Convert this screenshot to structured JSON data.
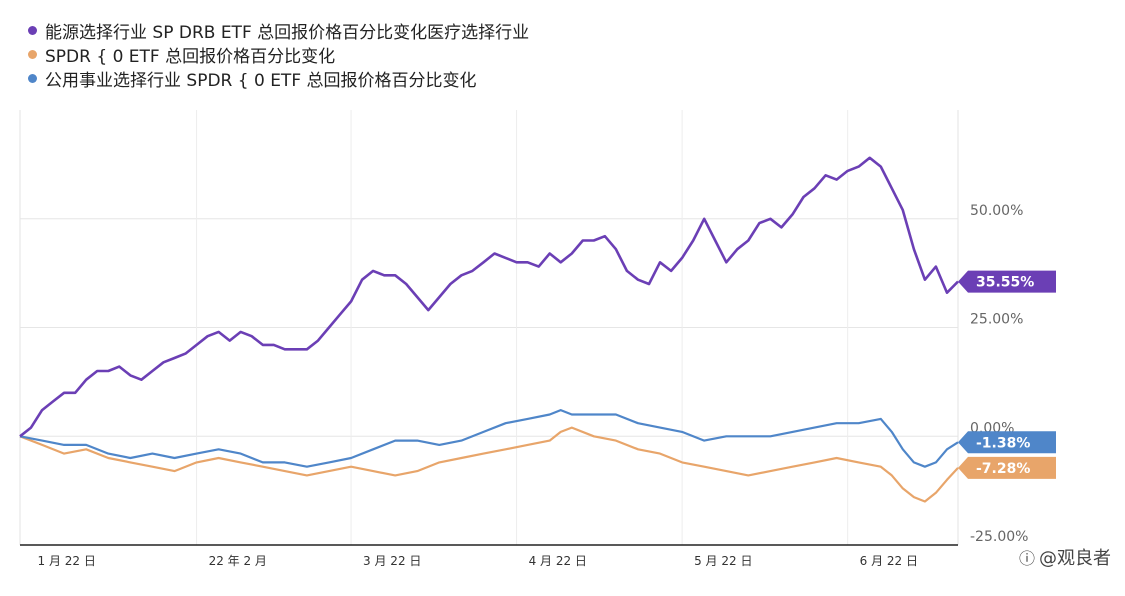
{
  "watermark": {
    "icon": "weibo-logo-icon",
    "text": "@观良者"
  },
  "chart_data": {
    "type": "line",
    "title": "",
    "xlabel": "",
    "ylabel": "",
    "ylim": [
      -25,
      75
    ],
    "y_ticks": [
      {
        "value": 50,
        "label": "50.00%"
      },
      {
        "value": 25,
        "label": "25.00%"
      },
      {
        "value": 0,
        "label": "0.00%"
      },
      {
        "value": -25,
        "label": "-25.00%"
      }
    ],
    "x_range": [
      0,
      170
    ],
    "x_ticks": [
      {
        "x": 1,
        "label": "1 月 22 日"
      },
      {
        "x": 32,
        "label": "22 年 2 月"
      },
      {
        "x": 60,
        "label": "3 月 22 日"
      },
      {
        "x": 90,
        "label": "4 月 22 日"
      },
      {
        "x": 120,
        "label": "5 月 22 日"
      },
      {
        "x": 150,
        "label": "6 月 22 日"
      }
    ],
    "grid": true,
    "legend_position": "top-left",
    "series": [
      {
        "name": "能源选择行业 SP DRB ETF 总回报价格百分比变化医疗选择行业",
        "color": "#6b3fb5",
        "end_label": "35.55%",
        "points": [
          [
            0,
            0
          ],
          [
            2,
            2
          ],
          [
            4,
            6
          ],
          [
            6,
            8
          ],
          [
            8,
            10
          ],
          [
            10,
            10
          ],
          [
            12,
            13
          ],
          [
            14,
            15
          ],
          [
            16,
            15
          ],
          [
            18,
            16
          ],
          [
            20,
            14
          ],
          [
            22,
            13
          ],
          [
            24,
            15
          ],
          [
            26,
            17
          ],
          [
            28,
            18
          ],
          [
            30,
            19
          ],
          [
            32,
            21
          ],
          [
            34,
            23
          ],
          [
            36,
            24
          ],
          [
            38,
            22
          ],
          [
            40,
            24
          ],
          [
            42,
            23
          ],
          [
            44,
            21
          ],
          [
            46,
            21
          ],
          [
            48,
            20
          ],
          [
            50,
            20
          ],
          [
            52,
            20
          ],
          [
            54,
            22
          ],
          [
            56,
            25
          ],
          [
            58,
            28
          ],
          [
            60,
            31
          ],
          [
            62,
            36
          ],
          [
            64,
            38
          ],
          [
            66,
            37
          ],
          [
            68,
            37
          ],
          [
            70,
            35
          ],
          [
            72,
            32
          ],
          [
            74,
            29
          ],
          [
            76,
            32
          ],
          [
            78,
            35
          ],
          [
            80,
            37
          ],
          [
            82,
            38
          ],
          [
            84,
            40
          ],
          [
            86,
            42
          ],
          [
            88,
            41
          ],
          [
            90,
            40
          ],
          [
            92,
            40
          ],
          [
            94,
            39
          ],
          [
            96,
            42
          ],
          [
            98,
            40
          ],
          [
            100,
            42
          ],
          [
            102,
            45
          ],
          [
            104,
            45
          ],
          [
            106,
            46
          ],
          [
            108,
            43
          ],
          [
            110,
            38
          ],
          [
            112,
            36
          ],
          [
            114,
            35
          ],
          [
            116,
            40
          ],
          [
            118,
            38
          ],
          [
            120,
            41
          ],
          [
            122,
            45
          ],
          [
            124,
            50
          ],
          [
            126,
            45
          ],
          [
            128,
            40
          ],
          [
            130,
            43
          ],
          [
            132,
            45
          ],
          [
            134,
            49
          ],
          [
            136,
            50
          ],
          [
            138,
            48
          ],
          [
            140,
            51
          ],
          [
            142,
            55
          ],
          [
            144,
            57
          ],
          [
            146,
            60
          ],
          [
            148,
            59
          ],
          [
            150,
            61
          ],
          [
            152,
            62
          ],
          [
            154,
            64
          ],
          [
            156,
            62
          ],
          [
            158,
            57
          ],
          [
            160,
            52
          ],
          [
            162,
            43
          ],
          [
            164,
            36
          ],
          [
            166,
            39
          ],
          [
            168,
            33
          ],
          [
            170,
            35.55
          ]
        ]
      },
      {
        "name": "SPDR { 0 ETF 总回报价格百分比变化",
        "color": "#e8a56a",
        "end_label": "-7.28%",
        "points": [
          [
            0,
            0
          ],
          [
            4,
            -2
          ],
          [
            8,
            -4
          ],
          [
            12,
            -3
          ],
          [
            16,
            -5
          ],
          [
            20,
            -6
          ],
          [
            24,
            -7
          ],
          [
            28,
            -8
          ],
          [
            32,
            -6
          ],
          [
            36,
            -5
          ],
          [
            40,
            -6
          ],
          [
            44,
            -7
          ],
          [
            48,
            -8
          ],
          [
            52,
            -9
          ],
          [
            56,
            -8
          ],
          [
            60,
            -7
          ],
          [
            64,
            -8
          ],
          [
            68,
            -9
          ],
          [
            72,
            -8
          ],
          [
            76,
            -6
          ],
          [
            80,
            -5
          ],
          [
            84,
            -4
          ],
          [
            88,
            -3
          ],
          [
            92,
            -2
          ],
          [
            96,
            -1
          ],
          [
            98,
            1
          ],
          [
            100,
            2
          ],
          [
            104,
            0
          ],
          [
            108,
            -1
          ],
          [
            112,
            -3
          ],
          [
            116,
            -4
          ],
          [
            120,
            -6
          ],
          [
            124,
            -7
          ],
          [
            128,
            -8
          ],
          [
            132,
            -9
          ],
          [
            136,
            -8
          ],
          [
            140,
            -7
          ],
          [
            144,
            -6
          ],
          [
            148,
            -5
          ],
          [
            152,
            -6
          ],
          [
            156,
            -7
          ],
          [
            158,
            -9
          ],
          [
            160,
            -12
          ],
          [
            162,
            -14
          ],
          [
            164,
            -15
          ],
          [
            166,
            -13
          ],
          [
            168,
            -10
          ],
          [
            170,
            -7.28
          ]
        ]
      },
      {
        "name": "公用事业选择行业 SPDR { 0 ETF 总回报价格百分比变化",
        "color": "#4f86c9",
        "end_label": "-1.38%",
        "points": [
          [
            0,
            0
          ],
          [
            4,
            -1
          ],
          [
            8,
            -2
          ],
          [
            12,
            -2
          ],
          [
            16,
            -4
          ],
          [
            20,
            -5
          ],
          [
            24,
            -4
          ],
          [
            28,
            -5
          ],
          [
            32,
            -4
          ],
          [
            36,
            -3
          ],
          [
            40,
            -4
          ],
          [
            44,
            -6
          ],
          [
            48,
            -6
          ],
          [
            52,
            -7
          ],
          [
            56,
            -6
          ],
          [
            60,
            -5
          ],
          [
            64,
            -3
          ],
          [
            68,
            -1
          ],
          [
            72,
            -1
          ],
          [
            76,
            -2
          ],
          [
            80,
            -1
          ],
          [
            84,
            1
          ],
          [
            88,
            3
          ],
          [
            92,
            4
          ],
          [
            96,
            5
          ],
          [
            98,
            6
          ],
          [
            100,
            5
          ],
          [
            104,
            5
          ],
          [
            108,
            5
          ],
          [
            112,
            3
          ],
          [
            116,
            2
          ],
          [
            120,
            1
          ],
          [
            124,
            -1
          ],
          [
            128,
            0
          ],
          [
            132,
            0
          ],
          [
            136,
            0
          ],
          [
            140,
            1
          ],
          [
            144,
            2
          ],
          [
            148,
            3
          ],
          [
            152,
            3
          ],
          [
            156,
            4
          ],
          [
            158,
            1
          ],
          [
            160,
            -3
          ],
          [
            162,
            -6
          ],
          [
            164,
            -7
          ],
          [
            166,
            -6
          ],
          [
            168,
            -3
          ],
          [
            170,
            -1.38
          ]
        ]
      }
    ]
  }
}
